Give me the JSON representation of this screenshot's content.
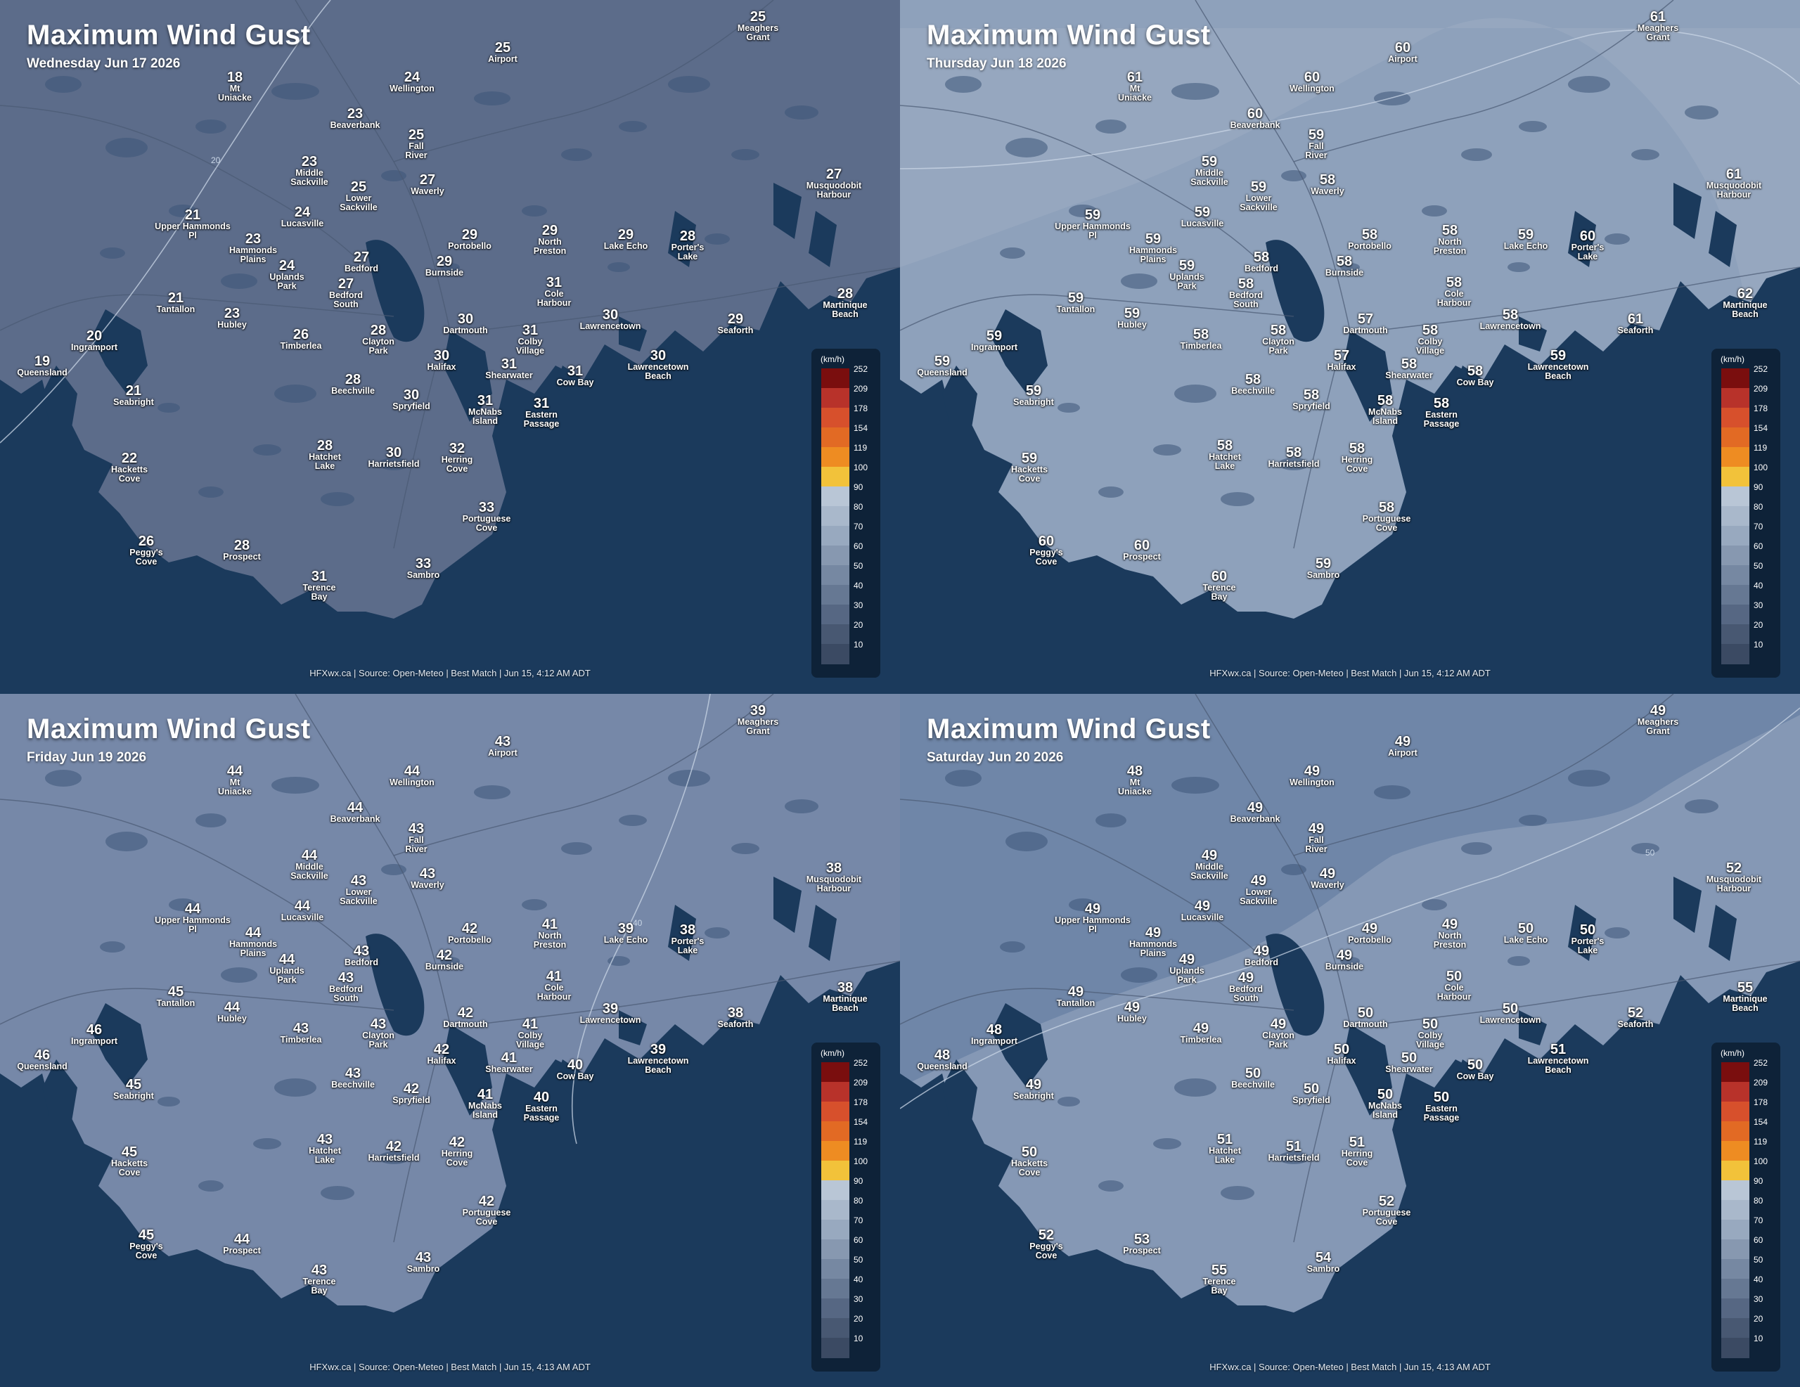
{
  "legend_unit": "(km/h)",
  "legend_scale": [
    {
      "value": "252",
      "color": "#7a0e0e"
    },
    {
      "value": "209",
      "color": "#b8322a"
    },
    {
      "value": "178",
      "color": "#d7502c"
    },
    {
      "value": "154",
      "color": "#e26a24"
    },
    {
      "value": "119",
      "color": "#ee8c22"
    },
    {
      "value": "100",
      "color": "#f2c23a"
    },
    {
      "value": "90",
      "color": "#b9c6d6"
    },
    {
      "value": "80",
      "color": "#a9b8cb"
    },
    {
      "value": "70",
      "color": "#98a9bf"
    },
    {
      "value": "60",
      "color": "#8798b0"
    },
    {
      "value": "50",
      "color": "#7688a2"
    },
    {
      "value": "40",
      "color": "#667893"
    },
    {
      "value": "30",
      "color": "#566783"
    },
    {
      "value": "20",
      "color": "#485872"
    },
    {
      "value": "10",
      "color": "#3b4a63"
    }
  ],
  "colors": {
    "ocean": "#1b3a5c",
    "land_base": "#6f819d",
    "legend_bg": "#0e2238"
  },
  "locations": [
    {
      "name": "Meaghers Grant"
    },
    {
      "name": "Airport"
    },
    {
      "name": "Mt Uniacke"
    },
    {
      "name": "Wellington"
    },
    {
      "name": "Beaverbank"
    },
    {
      "name": "Fall River"
    },
    {
      "name": "Middle Sackville"
    },
    {
      "name": "Waverly"
    },
    {
      "name": "Lower Sackville"
    },
    {
      "name": "Musquodobit Harbour"
    },
    {
      "name": "Upper Hammonds Pl"
    },
    {
      "name": "Lucasville"
    },
    {
      "name": "Portobello"
    },
    {
      "name": "North Preston"
    },
    {
      "name": "Lake Echo"
    },
    {
      "name": "Porter's Lake"
    },
    {
      "name": "Hammonds Plains"
    },
    {
      "name": "Uplands Park"
    },
    {
      "name": "Bedford"
    },
    {
      "name": "Burnside"
    },
    {
      "name": "Cole Harbour"
    },
    {
      "name": "Bedford South"
    },
    {
      "name": "Martinique Beach"
    },
    {
      "name": "Tantallon"
    },
    {
      "name": "Hubley"
    },
    {
      "name": "Dartmouth"
    },
    {
      "name": "Lawrencetown"
    },
    {
      "name": "Seaforth"
    },
    {
      "name": "Ingramport"
    },
    {
      "name": "Timberlea"
    },
    {
      "name": "Clayton Park"
    },
    {
      "name": "Colby Village"
    },
    {
      "name": "Halifax"
    },
    {
      "name": "Lawrencetown Beach"
    },
    {
      "name": "Queensland"
    },
    {
      "name": "Shearwater"
    },
    {
      "name": "Cow Bay"
    },
    {
      "name": "Beechville"
    },
    {
      "name": "Seabright"
    },
    {
      "name": "Spryfield"
    },
    {
      "name": "McNabs Island"
    },
    {
      "name": "Eastern Passage"
    },
    {
      "name": "Hatchet Lake"
    },
    {
      "name": "Harrietsfield"
    },
    {
      "name": "Herring Cove"
    },
    {
      "name": "Hacketts Cove"
    },
    {
      "name": "Portuguese Cove"
    },
    {
      "name": "Peggy's Cove"
    },
    {
      "name": "Prospect"
    },
    {
      "name": "Terence Bay"
    },
    {
      "name": "Sambro"
    }
  ],
  "panels": [
    {
      "title": "Maximum Wind Gust",
      "date": "Wednesday Jun 17 2026",
      "footer": "HFXwx.ca | Source: Open-Meteo | Best Match | Jun 15, 4:12 AM ADT",
      "values": [
        "25",
        "25",
        "18",
        "24",
        "23",
        "25",
        "23",
        "27",
        "25",
        "27",
        "21",
        "24",
        "29",
        "29",
        "29",
        "28",
        "23",
        "24",
        "27",
        "29",
        "31",
        "27",
        "28",
        "21",
        "23",
        "30",
        "30",
        "29",
        "20",
        "26",
        "28",
        "31",
        "30",
        "30",
        "19",
        "31",
        "31",
        "28",
        "21",
        "30",
        "31",
        "31",
        "28",
        "30",
        "32",
        "22",
        "33",
        "26",
        "28",
        "31",
        "33"
      ]
    },
    {
      "title": "Maximum Wind Gust",
      "date": "Thursday Jun 18 2026",
      "footer": "HFXwx.ca | Source: Open-Meteo | Best Match | Jun 15, 4:12 AM ADT",
      "values": [
        "61",
        "60",
        "61",
        "60",
        "60",
        "59",
        "59",
        "58",
        "59",
        "61",
        "59",
        "59",
        "58",
        "58",
        "59",
        "60",
        "59",
        "59",
        "58",
        "58",
        "58",
        "58",
        "62",
        "59",
        "59",
        "57",
        "58",
        "61",
        "59",
        "58",
        "58",
        "58",
        "57",
        "59",
        "59",
        "58",
        "58",
        "58",
        "59",
        "58",
        "58",
        "58",
        "58",
        "58",
        "58",
        "59",
        "58",
        "60",
        "60",
        "60",
        "59"
      ]
    },
    {
      "title": "Maximum Wind Gust",
      "date": "Friday Jun 19 2026",
      "footer": "HFXwx.ca | Source: Open-Meteo | Best Match | Jun 15, 4:13 AM ADT",
      "values": [
        "39",
        "43",
        "44",
        "44",
        "44",
        "43",
        "44",
        "43",
        "43",
        "38",
        "44",
        "44",
        "42",
        "41",
        "39",
        "38",
        "44",
        "44",
        "43",
        "42",
        "41",
        "43",
        "38",
        "45",
        "44",
        "42",
        "39",
        "38",
        "46",
        "43",
        "43",
        "41",
        "42",
        "39",
        "46",
        "41",
        "40",
        "43",
        "45",
        "42",
        "41",
        "40",
        "43",
        "42",
        "42",
        "45",
        "42",
        "45",
        "44",
        "43",
        "43"
      ]
    },
    {
      "title": "Maximum Wind Gust",
      "date": "Saturday Jun 20 2026",
      "footer": "HFXwx.ca | Source: Open-Meteo | Best Match | Jun 15, 4:13 AM ADT",
      "values": [
        "49",
        "49",
        "48",
        "49",
        "49",
        "49",
        "49",
        "49",
        "49",
        "52",
        "49",
        "49",
        "49",
        "49",
        "50",
        "50",
        "49",
        "49",
        "49",
        "49",
        "50",
        "49",
        "55",
        "49",
        "49",
        "50",
        "50",
        "52",
        "48",
        "49",
        "49",
        "50",
        "50",
        "51",
        "48",
        "50",
        "50",
        "50",
        "49",
        "50",
        "50",
        "50",
        "51",
        "51",
        "51",
        "50",
        "52",
        "52",
        "53",
        "55",
        "54"
      ]
    }
  ]
}
